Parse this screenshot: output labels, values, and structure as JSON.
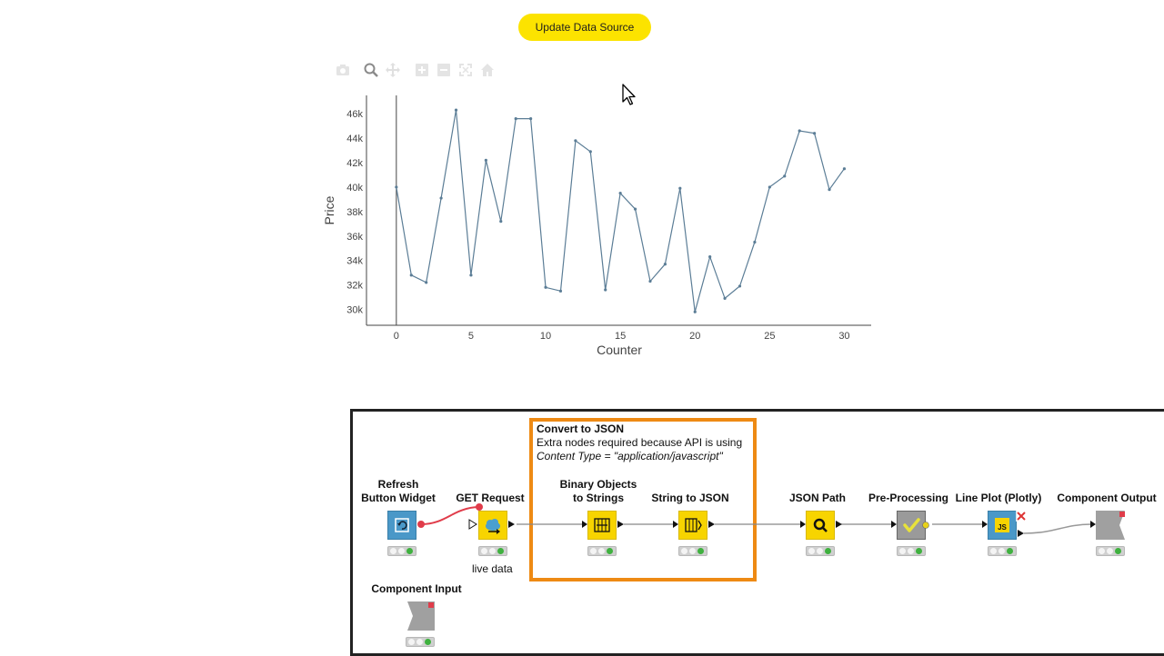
{
  "header": {
    "update_button_label": "Update Data Source"
  },
  "modebar": {
    "icons": [
      "camera-icon",
      "zoom-icon",
      "pan-icon",
      "zoom-in-icon",
      "zoom-out-icon",
      "autoscale-icon",
      "reset-axes-icon"
    ]
  },
  "chart_data": {
    "type": "line",
    "xlabel": "Counter",
    "ylabel": "Price",
    "xlim": [
      -2,
      31.8
    ],
    "ylim": [
      28700,
      47500
    ],
    "x_ticks": [
      0,
      5,
      10,
      15,
      20,
      25,
      30
    ],
    "y_ticks": [
      30000,
      32000,
      34000,
      36000,
      38000,
      40000,
      42000,
      44000,
      46000
    ],
    "y_tick_labels": [
      "30k",
      "32k",
      "34k",
      "36k",
      "38k",
      "40k",
      "42k",
      "44k",
      "46k"
    ],
    "series": [
      {
        "x": [
          0,
          1,
          2,
          3,
          4,
          5,
          6,
          7,
          8,
          9,
          10,
          11,
          12,
          13,
          14,
          15,
          16,
          17,
          18,
          19,
          20,
          21,
          22,
          23,
          24,
          25,
          26,
          27,
          28,
          29,
          30
        ],
        "y": [
          40000,
          32800,
          32200,
          39100,
          46300,
          32800,
          42200,
          37200,
          45600,
          45600,
          31800,
          31500,
          43800,
          42900,
          31600,
          39500,
          38200,
          32300,
          33700,
          39900,
          29800,
          34300,
          30900,
          31900,
          35500,
          40000,
          40900,
          44600,
          44400,
          39800,
          41500
        ],
        "color": "#5b7d96"
      }
    ]
  },
  "workflow": {
    "annotation": {
      "title": "Convert to JSON",
      "line2": "Extra nodes required because API is using",
      "line3": "Content Type = \"application/javascript\""
    },
    "nodes": {
      "refresh_line1": "Refresh",
      "refresh_line2": "Button Widget",
      "get_request": "GET Request",
      "get_request_sub": "live data",
      "binary_line1": "Binary Objects",
      "binary_line2": "to Strings",
      "string_to_json": "String to JSON",
      "json_path": "JSON Path",
      "preprocessing": "Pre-Processing",
      "line_plot": "Line Plot (Plotly)",
      "component_output": "Component Output",
      "component_input": "Component Input",
      "js_badge": "JS"
    },
    "colors": {
      "yellow_node": "#f7d400",
      "blue_node": "#4a98c8",
      "grey_node": "#9a9a9a",
      "annotation_border": "#ee8a14",
      "status_green": "#3fb13f",
      "connection_red": "#e03c4a"
    }
  }
}
